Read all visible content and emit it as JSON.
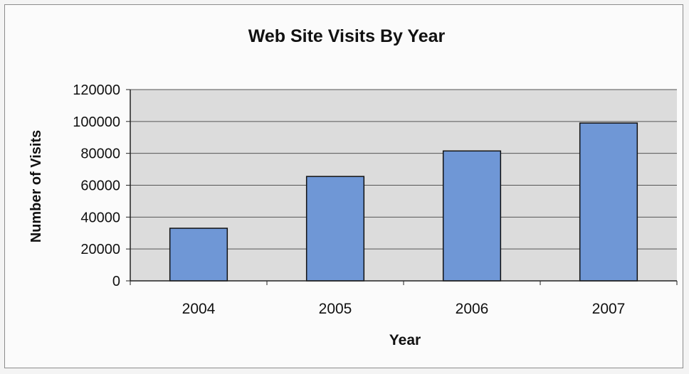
{
  "chart_data": {
    "type": "bar",
    "title": "Web Site Visits By Year",
    "xlabel": "Year",
    "ylabel": "Number of Visits",
    "categories": [
      "2004",
      "2005",
      "2006",
      "2007"
    ],
    "series": [
      {
        "values": [
          33000,
          65500,
          81500,
          99000
        ]
      }
    ],
    "ylim": [
      0,
      120000
    ],
    "yticks": [
      0,
      20000,
      40000,
      60000,
      80000,
      100000,
      120000
    ],
    "grid": true,
    "legend": "none",
    "colors": {
      "bar_fill": "#6f97d6",
      "bar_stroke": "#111111",
      "plot_bg": "#dcdcdc",
      "grid": "#555555"
    }
  }
}
